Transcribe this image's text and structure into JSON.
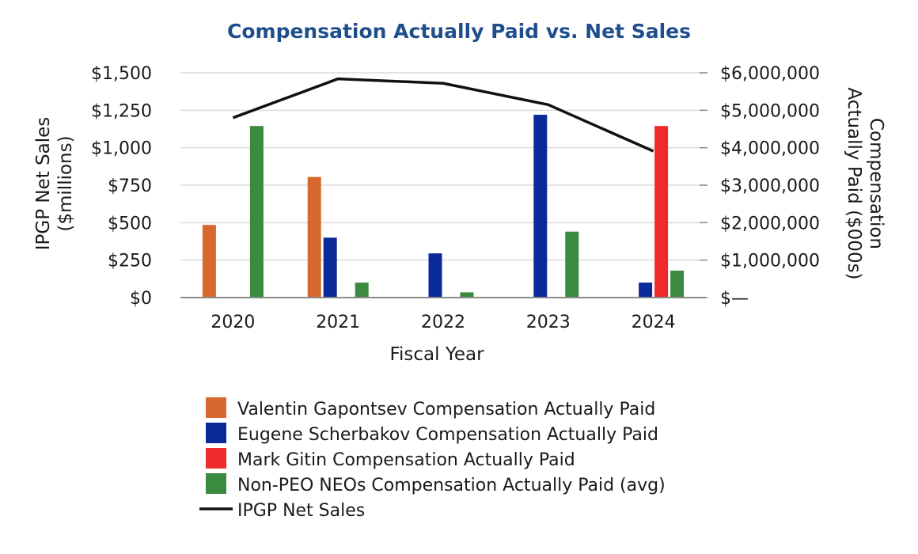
{
  "chart_data": {
    "type": "bar",
    "title": "Compensation Actually Paid vs. Net Sales",
    "xlabel": "Fiscal Year",
    "ylabel_left": [
      "IPGP Net Sales",
      "($millions)"
    ],
    "ylabel_right": [
      "Compensation",
      "Actually Paid ($000s)"
    ],
    "categories": [
      "2020",
      "2021",
      "2022",
      "2023",
      "2024"
    ],
    "ylim_left": [
      0,
      1500
    ],
    "ylim_right": [
      0,
      6000000
    ],
    "left_ticks": [
      "$0",
      "$250",
      "$500",
      "$750",
      "$1,000",
      "$1,250",
      "$1,500"
    ],
    "right_ticks": [
      "$—",
      "$1,000,000",
      "$2,000,000",
      "$3,000,000",
      "$4,000,000",
      "$5,000,000",
      "$6,000,000"
    ],
    "series": [
      {
        "name": "Valentin Gapontsev Compensation Actually Paid",
        "color": "#d9682e",
        "axis": "left",
        "values": [
          485,
          805,
          null,
          null,
          null
        ]
      },
      {
        "name": "Eugene Scherbakov Compensation Actually Paid",
        "color": "#0b2a9a",
        "axis": "left",
        "values": [
          null,
          400,
          295,
          1220,
          100
        ]
      },
      {
        "name": "Mark Gitin Compensation Actually Paid",
        "color": "#ee2a2a",
        "axis": "left",
        "values": [
          null,
          null,
          null,
          null,
          1145
        ]
      },
      {
        "name": "Non-PEO NEOs Compensation Actually Paid (avg)",
        "color": "#3a8a3f",
        "axis": "left",
        "values": [
          1145,
          100,
          35,
          440,
          180
        ]
      }
    ],
    "line_series": {
      "name": "IPGP Net Sales",
      "color": "#111111",
      "axis": "left",
      "values": [
        1200,
        1460,
        1430,
        1287,
        977
      ]
    },
    "legend_position": "bottom-center",
    "grid": true
  }
}
